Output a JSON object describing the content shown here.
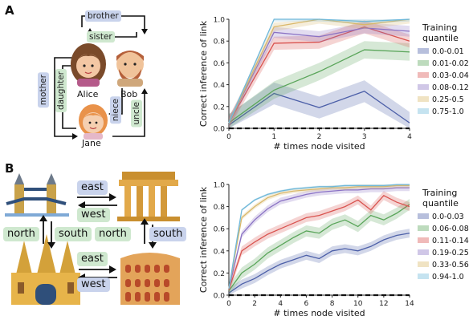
{
  "panel_a": {
    "letter": "A",
    "names": {
      "alice": "Alice",
      "bob": "Bob",
      "jane": "Jane"
    },
    "relations": {
      "brother": "brother",
      "sister": "sister",
      "mother": "mother",
      "daughter": "daughter",
      "niece": "niece",
      "uncle": "uncle"
    }
  },
  "panel_b": {
    "letter": "B",
    "relations": {
      "east_top": "east",
      "west_top": "west",
      "north_left": "north",
      "south_left": "south",
      "north_right": "north",
      "south_right": "south",
      "east_bottom": "east",
      "west_bottom": "west"
    }
  },
  "chart_data": [
    {
      "type": "line",
      "title": "",
      "xlabel": "# times node visited",
      "ylabel": "Correct inference of link",
      "xlim": [
        0,
        4
      ],
      "ylim": [
        0,
        1.0
      ],
      "xticks": [
        0,
        1,
        2,
        3,
        4
      ],
      "yticks": [
        0.0,
        0.2,
        0.4,
        0.6,
        0.8,
        1.0
      ],
      "chance_line": 0.0,
      "legend_title": "Training quantile",
      "legend_position": "right",
      "x": [
        0,
        1,
        2,
        3,
        4
      ],
      "series": [
        {
          "name": "0.0-0.01",
          "color": "#4c5fa8",
          "values": [
            0.03,
            0.32,
            0.19,
            0.34,
            0.05
          ],
          "band": 0.1
        },
        {
          "name": "0.01-0.02",
          "color": "#5aa55a",
          "values": [
            0.05,
            0.35,
            0.52,
            0.72,
            0.7
          ],
          "band": 0.08
        },
        {
          "name": "0.03-0.04",
          "color": "#d9534f",
          "values": [
            0.05,
            0.78,
            0.79,
            0.93,
            0.8
          ],
          "band": 0.06
        },
        {
          "name": "0.08-0.12",
          "color": "#8a72c4",
          "values": [
            0.05,
            0.88,
            0.84,
            0.92,
            0.89
          ],
          "band": 0.05
        },
        {
          "name": "0.25-0.5",
          "color": "#d9b86a",
          "values": [
            0.05,
            0.93,
            1.0,
            0.95,
            1.0
          ],
          "band": 0.04
        },
        {
          "name": "0.75-1.0",
          "color": "#6fb8d9",
          "values": [
            0.05,
            1.0,
            1.0,
            0.98,
            1.0
          ],
          "band": 0.02
        }
      ]
    },
    {
      "type": "line",
      "title": "",
      "xlabel": "# times node visited",
      "ylabel": "Correct inference of link",
      "xlim": [
        0,
        14
      ],
      "ylim": [
        0,
        1.0
      ],
      "xticks": [
        0,
        2,
        4,
        6,
        8,
        10,
        12,
        14
      ],
      "yticks": [
        0.0,
        0.2,
        0.4,
        0.6,
        0.8,
        1.0
      ],
      "chance_line": 0.0,
      "legend_title": "Training quantile",
      "legend_position": "right",
      "x": [
        0,
        1,
        2,
        3,
        4,
        5,
        6,
        7,
        8,
        9,
        10,
        11,
        12,
        13,
        14
      ],
      "series": [
        {
          "name": "0.0-0.03",
          "color": "#4c5fa8",
          "values": [
            0.02,
            0.1,
            0.15,
            0.22,
            0.28,
            0.32,
            0.36,
            0.33,
            0.4,
            0.42,
            0.4,
            0.44,
            0.5,
            0.54,
            0.56
          ],
          "band": 0.04
        },
        {
          "name": "0.06-0.08",
          "color": "#5aa55a",
          "values": [
            0.04,
            0.2,
            0.28,
            0.38,
            0.45,
            0.52,
            0.58,
            0.56,
            0.64,
            0.68,
            0.62,
            0.72,
            0.68,
            0.74,
            0.82
          ],
          "band": 0.05
        },
        {
          "name": "0.11-0.14",
          "color": "#d9534f",
          "values": [
            0.05,
            0.4,
            0.48,
            0.55,
            0.6,
            0.65,
            0.7,
            0.72,
            0.76,
            0.8,
            0.86,
            0.77,
            0.9,
            0.84,
            0.8
          ],
          "band": 0.04
        },
        {
          "name": "0.19-0.25",
          "color": "#8a72c4",
          "values": [
            0.06,
            0.55,
            0.68,
            0.78,
            0.85,
            0.88,
            0.91,
            0.93,
            0.94,
            0.95,
            0.95,
            0.96,
            0.96,
            0.97,
            0.97
          ],
          "band": 0.03
        },
        {
          "name": "0.33-0.56",
          "color": "#d9b86a",
          "values": [
            0.06,
            0.7,
            0.8,
            0.88,
            0.92,
            0.94,
            0.95,
            0.96,
            0.97,
            0.97,
            0.98,
            0.98,
            0.98,
            0.99,
            0.99
          ],
          "band": 0.02
        },
        {
          "name": "0.94-1.0",
          "color": "#6fb8d9",
          "values": [
            0.06,
            0.77,
            0.86,
            0.91,
            0.94,
            0.96,
            0.97,
            0.98,
            0.98,
            0.99,
            0.99,
            0.99,
            0.99,
            1.0,
            1.0
          ],
          "band": 0.01
        }
      ]
    }
  ]
}
